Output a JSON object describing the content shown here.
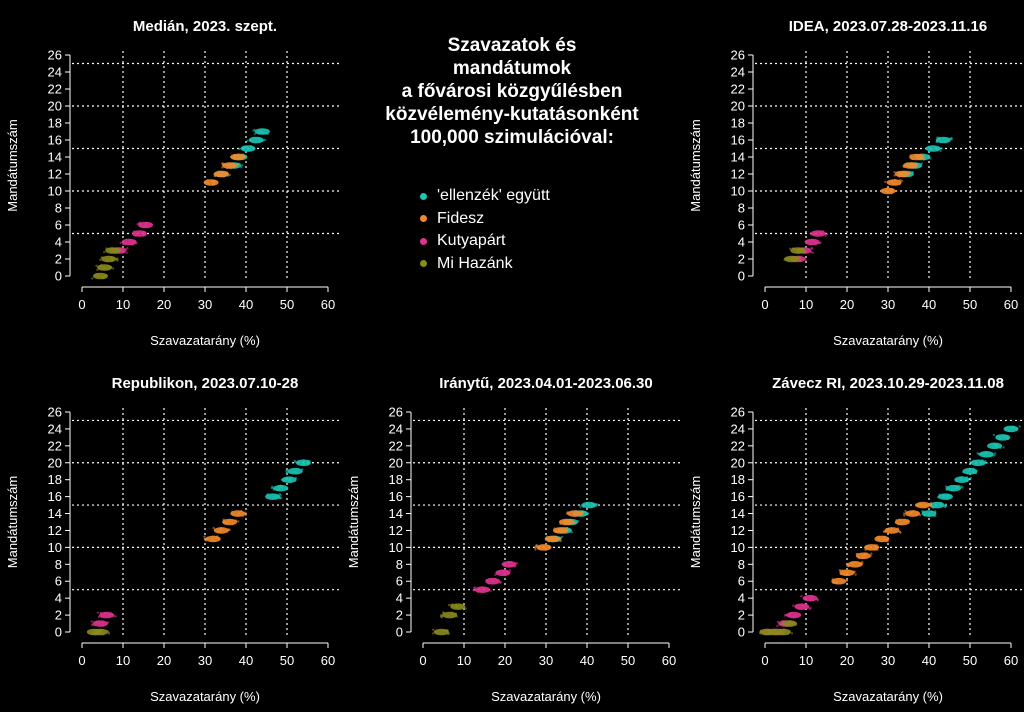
{
  "main_title": "Szavazatok és\nmandátumok\na fővárosi közgyűlésben\nközvélemény-kutatásonként\n100,000 szimulációval:",
  "colors": {
    "background": "#000000",
    "ellenzek": "#1cc5b4",
    "fidesz": "#f28a2c",
    "kutyapart": "#e0338f",
    "mihazank": "#8a8a1e"
  },
  "legend": [
    {
      "label": "'ellenzék' együtt",
      "color": "#1cc5b4"
    },
    {
      "label": "Fidesz",
      "color": "#f28a2c"
    },
    {
      "label": "Kutyapárt",
      "color": "#e0338f"
    },
    {
      "label": "Mi Hazánk",
      "color": "#8a8a1e"
    }
  ],
  "chart_data": [
    {
      "type": "scatter",
      "title": "Medián, 2023. szept.",
      "xlabel": "Szavazatarány (%)",
      "ylabel": "Mandátumszám",
      "xlim": [
        0,
        60
      ],
      "ylim": [
        0,
        26
      ],
      "xticks": [
        0,
        10,
        20,
        30,
        40,
        50,
        60
      ],
      "yticks": [
        0,
        2,
        4,
        6,
        8,
        10,
        12,
        14,
        16,
        18,
        20,
        22,
        24,
        26
      ],
      "hlines": [
        5,
        10,
        15,
        20,
        25
      ],
      "vlines": [
        10,
        20,
        30,
        40,
        50
      ],
      "grid": true,
      "series": [
        {
          "name": "'ellenzék' együtt",
          "color": "#1cc5b4",
          "points": [
            [
              34,
              12
            ],
            [
              37,
              13
            ],
            [
              38.5,
              14
            ],
            [
              40.5,
              15
            ],
            [
              42.5,
              16
            ],
            [
              44,
              17
            ]
          ]
        },
        {
          "name": "Fidesz",
          "color": "#f28a2c",
          "points": [
            [
              31.5,
              11
            ],
            [
              34,
              12
            ],
            [
              36,
              13
            ],
            [
              38,
              14
            ]
          ]
        },
        {
          "name": "Kutyapárt",
          "color": "#e0338f",
          "points": [
            [
              9,
              3
            ],
            [
              11.5,
              4
            ],
            [
              14,
              5
            ],
            [
              15.5,
              6
            ]
          ]
        },
        {
          "name": "Mi Hazánk",
          "color": "#8a8a1e",
          "points": [
            [
              4.5,
              0
            ],
            [
              5.5,
              1
            ],
            [
              6.5,
              2
            ],
            [
              7.5,
              3
            ]
          ]
        }
      ]
    },
    {
      "type": "scatter",
      "title": "IDEA, 2023.07.28-2023.11.16",
      "xlabel": "Szavazatarány (%)",
      "ylabel": "Mandátumszám",
      "xlim": [
        0,
        60
      ],
      "ylim": [
        0,
        26
      ],
      "xticks": [
        0,
        10,
        20,
        30,
        40,
        50,
        60
      ],
      "yticks": [
        0,
        2,
        4,
        6,
        8,
        10,
        12,
        14,
        16,
        18,
        20,
        22,
        24,
        26
      ],
      "hlines": [
        5,
        10,
        15,
        20,
        25
      ],
      "vlines": [
        10,
        20,
        30,
        40,
        50
      ],
      "grid": true,
      "series": [
        {
          "name": "'ellenzék' együtt",
          "color": "#1cc5b4",
          "points": [
            [
              34.5,
              12
            ],
            [
              36.5,
              13
            ],
            [
              38.5,
              14
            ],
            [
              41,
              15
            ],
            [
              43.5,
              16
            ]
          ]
        },
        {
          "name": "Fidesz",
          "color": "#f28a2c",
          "points": [
            [
              30,
              10
            ],
            [
              31.5,
              11
            ],
            [
              33.5,
              12
            ],
            [
              35.5,
              13
            ],
            [
              37,
              14
            ]
          ]
        },
        {
          "name": "Kutyapárt",
          "color": "#e0338f",
          "points": [
            [
              8,
              2
            ],
            [
              9.5,
              3
            ],
            [
              11.5,
              4
            ],
            [
              13,
              5
            ]
          ]
        },
        {
          "name": "Mi Hazánk",
          "color": "#8a8a1e",
          "points": [
            [
              6.5,
              2
            ],
            [
              8,
              3
            ]
          ]
        }
      ]
    },
    {
      "type": "scatter",
      "title": "Republikon, 2023.07.10-28",
      "xlabel": "Szavazatarány (%)",
      "ylabel": "Mandátumszám",
      "xlim": [
        0,
        60
      ],
      "ylim": [
        0,
        26
      ],
      "xticks": [
        0,
        10,
        20,
        30,
        40,
        50,
        60
      ],
      "yticks": [
        0,
        2,
        4,
        6,
        8,
        10,
        12,
        14,
        16,
        18,
        20,
        22,
        24,
        26
      ],
      "hlines": [
        5,
        10,
        15,
        20,
        25
      ],
      "vlines": [
        10,
        20,
        30,
        40,
        50
      ],
      "grid": true,
      "series": [
        {
          "name": "'ellenzék' együtt",
          "color": "#1cc5b4",
          "points": [
            [
              46.5,
              16
            ],
            [
              48.5,
              17
            ],
            [
              50.5,
              18
            ],
            [
              52,
              19
            ],
            [
              54,
              20
            ]
          ]
        },
        {
          "name": "Fidesz",
          "color": "#f28a2c",
          "points": [
            [
              32,
              11
            ],
            [
              34,
              12
            ],
            [
              36,
              13
            ],
            [
              38,
              14
            ]
          ]
        },
        {
          "name": "Kutyapárt",
          "color": "#e0338f",
          "points": [
            [
              4.5,
              1
            ],
            [
              6,
              2
            ]
          ]
        },
        {
          "name": "Mi Hazánk",
          "color": "#8a8a1e",
          "points": [
            [
              3,
              0
            ],
            [
              4.5,
              0
            ]
          ]
        }
      ]
    },
    {
      "type": "scatter",
      "title": "Iránytű, 2023.04.01-2023.06.30",
      "xlabel": "Szavazatarány (%)",
      "ylabel": "Mandátumszám",
      "xlim": [
        0,
        60
      ],
      "ylim": [
        0,
        26
      ],
      "xticks": [
        0,
        10,
        20,
        30,
        40,
        50,
        60
      ],
      "yticks": [
        0,
        2,
        4,
        6,
        8,
        10,
        12,
        14,
        16,
        18,
        20,
        22,
        24,
        26
      ],
      "hlines": [
        5,
        10,
        15,
        20,
        25
      ],
      "vlines": [
        10,
        20,
        30,
        40,
        50
      ],
      "grid": true,
      "series": [
        {
          "name": "'ellenzék' együtt",
          "color": "#1cc5b4",
          "points": [
            [
              32,
              11
            ],
            [
              34.5,
              12
            ],
            [
              36,
              13
            ],
            [
              38.5,
              14
            ],
            [
              40.5,
              15
            ]
          ]
        },
        {
          "name": "Fidesz",
          "color": "#f28a2c",
          "points": [
            [
              29.5,
              10
            ],
            [
              31.5,
              11
            ],
            [
              33.5,
              12
            ],
            [
              35,
              13
            ],
            [
              37,
              14
            ]
          ]
        },
        {
          "name": "Kutyapárt",
          "color": "#e0338f",
          "points": [
            [
              14.5,
              5
            ],
            [
              17,
              6
            ],
            [
              19.5,
              7
            ],
            [
              21,
              8
            ]
          ]
        },
        {
          "name": "Mi Hazánk",
          "color": "#8a8a1e",
          "points": [
            [
              4.5,
              0
            ],
            [
              6.5,
              2
            ],
            [
              8.5,
              3
            ]
          ]
        }
      ]
    },
    {
      "type": "scatter",
      "title": "Závecz RI, 2023.10.29-2023.11.08",
      "xlabel": "Szavazatarány (%)",
      "ylabel": "Mandátumszám",
      "xlim": [
        0,
        60
      ],
      "ylim": [
        0,
        26
      ],
      "xticks": [
        0,
        10,
        20,
        30,
        40,
        50,
        60
      ],
      "yticks": [
        0,
        2,
        4,
        6,
        8,
        10,
        12,
        14,
        16,
        18,
        20,
        22,
        24,
        26
      ],
      "hlines": [
        5,
        10,
        15,
        20,
        25
      ],
      "vlines": [
        10,
        20,
        30,
        40,
        50
      ],
      "grid": true,
      "series": [
        {
          "name": "'ellenzék' együtt",
          "color": "#1cc5b4",
          "points": [
            [
              40,
              14
            ],
            [
              42,
              15
            ],
            [
              44,
              16
            ],
            [
              46,
              17
            ],
            [
              48,
              18
            ],
            [
              50,
              19
            ],
            [
              52,
              20
            ],
            [
              54,
              21
            ],
            [
              56,
              22
            ],
            [
              58,
              23
            ],
            [
              60,
              24
            ]
          ]
        },
        {
          "name": "Fidesz",
          "color": "#f28a2c",
          "points": [
            [
              18,
              6
            ],
            [
              20,
              7
            ],
            [
              22,
              8
            ],
            [
              24,
              9
            ],
            [
              26,
              10
            ],
            [
              28.5,
              11
            ],
            [
              31,
              12
            ],
            [
              33.5,
              13
            ],
            [
              36,
              14
            ],
            [
              38.5,
              15
            ]
          ]
        },
        {
          "name": "Kutyapárt",
          "color": "#e0338f",
          "points": [
            [
              1,
              0
            ],
            [
              3,
              0
            ],
            [
              5,
              1
            ],
            [
              7,
              2
            ],
            [
              9,
              3
            ],
            [
              11,
              4
            ]
          ]
        },
        {
          "name": "Mi Hazánk",
          "color": "#8a8a1e",
          "points": [
            [
              0.5,
              0
            ],
            [
              2.5,
              0
            ],
            [
              4.5,
              0
            ],
            [
              6,
              1
            ]
          ]
        }
      ]
    }
  ]
}
